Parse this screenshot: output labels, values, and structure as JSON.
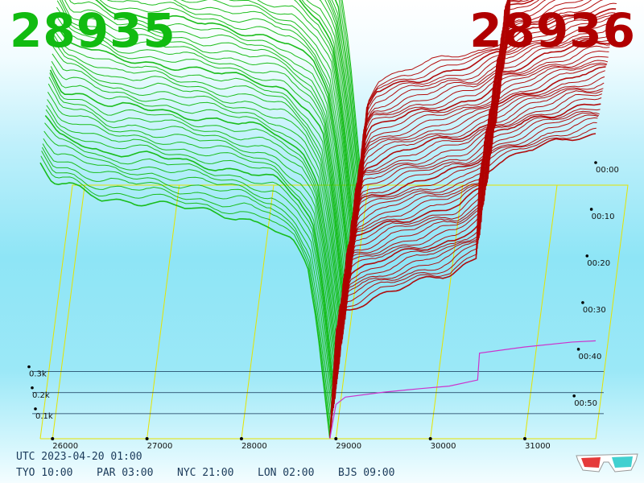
{
  "header": {
    "bid_price": "28935",
    "ask_price": "28936"
  },
  "colors": {
    "bid": "#11bb11",
    "ask": "#b00000",
    "grid": "#e4e400",
    "outline": "#cc33cc"
  },
  "footer": {
    "utc": "UTC 2023-04-20 01:00",
    "clocks": [
      {
        "label": "TYO 10:00"
      },
      {
        "label": "PAR 03:00"
      },
      {
        "label": "NYC 21:00"
      },
      {
        "label": "LON 02:00"
      },
      {
        "label": "BJS 09:00"
      }
    ]
  },
  "icons": {
    "glasses": "3d-glasses-icon"
  },
  "chart_data": {
    "type": "area",
    "x_tick_labels": [
      "26000",
      "27000",
      "28000",
      "29000",
      "30000",
      "31000"
    ],
    "x_ticks": [
      26000,
      27000,
      28000,
      29000,
      30000,
      31000
    ],
    "xlim": [
      25870,
      31750
    ],
    "z_tick_labels": [
      "0.1k",
      "0.2k",
      "0.3k"
    ],
    "z_ticks": [
      100,
      200,
      300
    ],
    "time_tick_labels": [
      "00:00",
      "00:10",
      "00:20",
      "00:30",
      "00:40",
      "00:50"
    ],
    "snapshots": 52,
    "series": [
      {
        "name": "bid",
        "price": 28935,
        "x": [
          25870,
          26000,
          26200,
          26500,
          27000,
          27500,
          28000,
          28300,
          28550,
          28700,
          28800,
          28935
        ],
        "values": [
          360,
          335,
          330,
          315,
          310,
          300,
          290,
          280,
          255,
          225,
          150,
          0
        ]
      },
      {
        "name": "ask",
        "price": 28936,
        "x": [
          28936,
          29000,
          29100,
          29500,
          29900,
          30200,
          30500,
          30520,
          31000,
          31500,
          31750
        ],
        "values": [
          0,
          140,
          170,
          190,
          205,
          215,
          240,
          350,
          375,
          395,
          400
        ]
      }
    ]
  }
}
